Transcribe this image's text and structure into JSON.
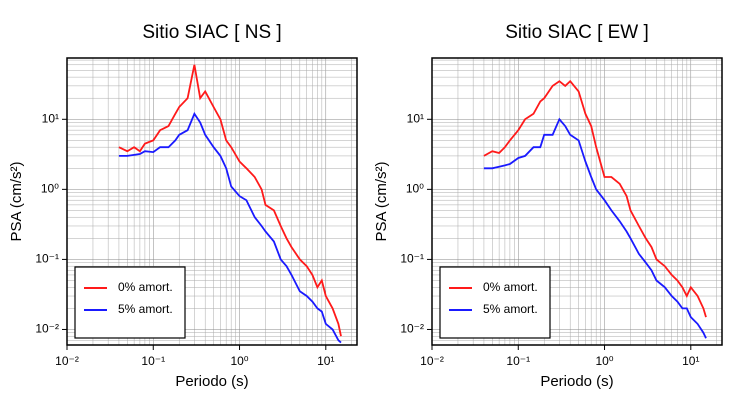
{
  "chart_data": [
    {
      "type": "line",
      "title": "Sitio SIAC [ NS ]",
      "x_label": "Periodo (s)",
      "y_label": "PSA (cm/s²)",
      "log_x": true,
      "log_y": true,
      "grid": true,
      "legend": "lower left",
      "xlim": [
        0.01,
        23
      ],
      "ylim": [
        0.006,
        75
      ],
      "xticks": [
        {
          "value": 0.01,
          "label": "10⁻²"
        },
        {
          "value": 0.1,
          "label": "10⁻¹"
        },
        {
          "value": 1,
          "label": "10⁰"
        },
        {
          "value": 10,
          "label": "10¹"
        }
      ],
      "yticks": [
        {
          "value": 0.01,
          "label": "10⁻²"
        },
        {
          "value": 0.1,
          "label": "10⁻¹"
        },
        {
          "value": 1,
          "label": "10⁰"
        },
        {
          "value": 10,
          "label": "10¹"
        }
      ],
      "x": [
        0.04,
        0.05,
        0.06,
        0.07,
        0.08,
        0.1,
        0.12,
        0.15,
        0.18,
        0.2,
        0.25,
        0.3,
        0.35,
        0.4,
        0.5,
        0.6,
        0.7,
        0.8,
        1,
        1.2,
        1.5,
        1.8,
        2,
        2.5,
        3,
        3.5,
        4,
        5,
        6,
        7,
        8,
        9,
        10,
        12,
        14,
        15
      ],
      "series": [
        {
          "name": "0% amort.",
          "color": "#ff1a1a",
          "values": [
            4,
            3.5,
            4,
            3.5,
            4.5,
            5,
            7,
            8,
            12,
            15,
            20,
            60,
            20,
            25,
            15,
            10,
            5,
            4,
            2.5,
            2,
            1.5,
            1,
            0.6,
            0.5,
            0.3,
            0.2,
            0.15,
            0.1,
            0.08,
            0.06,
            0.04,
            0.05,
            0.03,
            0.02,
            0.012,
            0.008
          ]
        },
        {
          "name": "5% amort.",
          "color": "#1a1aff",
          "values": [
            3,
            3,
            3.1,
            3.2,
            3.5,
            3.4,
            4,
            4,
            5,
            6,
            7,
            12,
            9,
            6,
            4,
            3,
            2,
            1.1,
            0.8,
            0.7,
            0.4,
            0.3,
            0.25,
            0.18,
            0.1,
            0.08,
            0.06,
            0.035,
            0.03,
            0.025,
            0.02,
            0.018,
            0.012,
            0.01,
            0.007,
            0.0065
          ]
        }
      ]
    },
    {
      "type": "line",
      "title": "Sitio SIAC [ EW ]",
      "x_label": "Periodo (s)",
      "y_label": "PSA (cm/s²)",
      "log_x": true,
      "log_y": true,
      "grid": true,
      "legend": "lower left",
      "xlim": [
        0.01,
        23
      ],
      "ylim": [
        0.006,
        75
      ],
      "xticks": [
        {
          "value": 0.01,
          "label": "10⁻²"
        },
        {
          "value": 0.1,
          "label": "10⁻¹"
        },
        {
          "value": 1,
          "label": "10⁰"
        },
        {
          "value": 10,
          "label": "10¹"
        }
      ],
      "yticks": [
        {
          "value": 0.01,
          "label": "10⁻²"
        },
        {
          "value": 0.1,
          "label": "10⁻¹"
        },
        {
          "value": 1,
          "label": "10⁰"
        },
        {
          "value": 10,
          "label": "10¹"
        }
      ],
      "x": [
        0.04,
        0.05,
        0.06,
        0.07,
        0.08,
        0.1,
        0.12,
        0.15,
        0.18,
        0.2,
        0.25,
        0.3,
        0.35,
        0.4,
        0.5,
        0.6,
        0.7,
        0.8,
        1,
        1.2,
        1.5,
        1.8,
        2,
        2.5,
        3,
        3.5,
        4,
        5,
        6,
        7,
        8,
        9,
        10,
        12,
        14,
        15
      ],
      "series": [
        {
          "name": "0% amort.",
          "color": "#ff1a1a",
          "values": [
            3,
            3.5,
            3.3,
            4,
            5,
            7,
            10,
            12,
            18,
            20,
            30,
            35,
            30,
            35,
            25,
            12,
            8,
            4,
            1.5,
            1.5,
            1.2,
            0.8,
            0.5,
            0.3,
            0.2,
            0.15,
            0.1,
            0.08,
            0.06,
            0.05,
            0.04,
            0.03,
            0.04,
            0.03,
            0.02,
            0.015
          ]
        },
        {
          "name": "5% amort.",
          "color": "#1a1aff",
          "values": [
            2,
            2,
            2.1,
            2.2,
            2.3,
            2.8,
            3,
            4,
            4,
            6,
            6,
            10,
            8,
            6,
            5,
            2.5,
            1.5,
            1,
            0.7,
            0.5,
            0.35,
            0.25,
            0.2,
            0.12,
            0.09,
            0.07,
            0.05,
            0.04,
            0.03,
            0.025,
            0.02,
            0.02,
            0.015,
            0.012,
            0.009,
            0.0075
          ]
        }
      ]
    }
  ]
}
